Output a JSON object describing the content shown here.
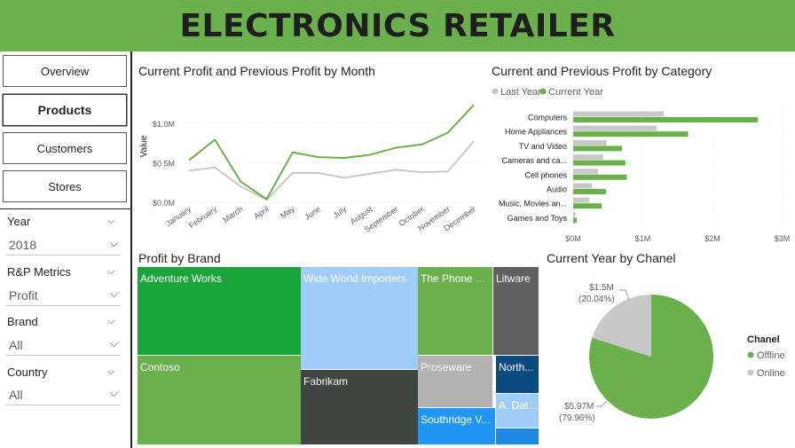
{
  "header": {
    "title": "ELECTRONICS RETAILER"
  },
  "nav": [
    {
      "label": "Overview",
      "active": false
    },
    {
      "label": "Products",
      "active": true
    },
    {
      "label": "Customers",
      "active": false
    },
    {
      "label": "Stores",
      "active": false
    }
  ],
  "slicers": [
    {
      "label": "Year",
      "value": "2018"
    },
    {
      "label": "R&P Metrics",
      "value": "Profit"
    },
    {
      "label": "Brand",
      "value": "All"
    },
    {
      "label": "Country",
      "value": "All"
    }
  ],
  "line_chart": {
    "title": "Current Profit and Previous Profit by Month"
  },
  "bar_chart": {
    "title": "Current and Previous Profit by Category"
  },
  "treemap": {
    "title": "Profit by Brand",
    "tiles": [
      {
        "label": "Adventure Works",
        "color": "#1aa53c"
      },
      {
        "label": "Contoso",
        "color": "#6ab04c"
      },
      {
        "label": "Wide World Importers",
        "color": "#9fcdf7"
      },
      {
        "label": "Fabrikam",
        "color": "#3f4540"
      },
      {
        "label": "The Phone ...",
        "color": "#6ab04c"
      },
      {
        "label": "Litware",
        "color": "#616161"
      },
      {
        "label": "Proseware",
        "color": "#b3b3b3"
      },
      {
        "label": "North...",
        "color": "#0b4a80"
      },
      {
        "label": "A. Dat...",
        "color": "#9fcdf7"
      },
      {
        "label": "Southridge V...",
        "color": "#2195f3"
      },
      {
        "label": "",
        "color": "#1e88e5"
      }
    ]
  },
  "pie_chart": {
    "title": "Current Year by Chanel",
    "legend_title": "Chanel",
    "labels": {
      "online_value": "$1.5M",
      "online_pct": "(20.04%)",
      "offline_value": "$5.97M",
      "offline_pct": "(79.96%)"
    }
  },
  "chart_data": [
    {
      "type": "line",
      "title": "Current Profit and Previous Profit by Month",
      "xlabel": "",
      "ylabel": "Value",
      "ylim": [
        0,
        1.3
      ],
      "y_ticks": [
        "$0.0M",
        "$0.5M",
        "$1.0M"
      ],
      "categories": [
        "January",
        "February",
        "March",
        "April",
        "May",
        "June",
        "July",
        "August",
        "September",
        "October",
        "November",
        "December"
      ],
      "series": [
        {
          "color": "#6ab04c",
          "values": [
            0.53,
            0.79,
            0.26,
            0.04,
            0.63,
            0.57,
            0.56,
            0.6,
            0.69,
            0.73,
            0.88,
            1.23
          ]
        },
        {
          "color": "#c8c8c8",
          "values": [
            0.4,
            0.44,
            0.2,
            0.03,
            0.37,
            0.37,
            0.31,
            0.36,
            0.41,
            0.38,
            0.39,
            0.77
          ]
        }
      ],
      "grid": true
    },
    {
      "type": "bar",
      "orientation": "horizontal",
      "title": "Current and Previous Profit by Category",
      "categories": [
        "Computers",
        "Home Appliances",
        "TV and Video",
        "Cameras and ca...",
        "Cell phones",
        "Audio",
        "Music, Movies an...",
        "Games and Toys"
      ],
      "series": [
        {
          "name": "Last Year",
          "color": "#c8c8c8",
          "values": [
            1.3,
            1.2,
            0.48,
            0.43,
            0.36,
            0.27,
            0.23,
            0.03
          ]
        },
        {
          "name": "Current Year",
          "color": "#6ab04c",
          "values": [
            2.65,
            1.65,
            0.7,
            0.75,
            0.77,
            0.47,
            0.41,
            0.05
          ]
        }
      ],
      "xlim": [
        0,
        3
      ],
      "x_ticks": [
        "$0M",
        "$1M",
        "$2M",
        "$3M"
      ],
      "legend": "top-left"
    },
    {
      "type": "treemap",
      "title": "Profit by Brand",
      "items": [
        "Adventure Works",
        "Contoso",
        "Wide World Importers",
        "Fabrikam",
        "The Phone ...",
        "Litware",
        "Proseware",
        "North...",
        "A. Dat...",
        "Southridge V..."
      ]
    },
    {
      "type": "pie",
      "title": "Current Year by Chanel",
      "slices": [
        {
          "name": "Offline",
          "value": 5.97,
          "percent": 79.96,
          "color": "#6ab04c"
        },
        {
          "name": "Online",
          "value": 1.5,
          "percent": 20.04,
          "color": "#c8c8c8"
        }
      ],
      "legend": "right"
    }
  ]
}
